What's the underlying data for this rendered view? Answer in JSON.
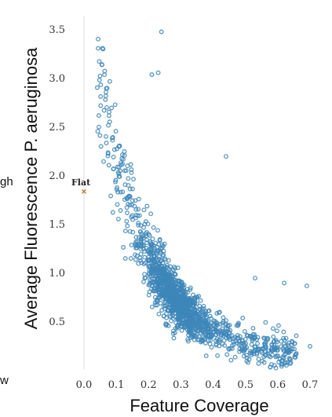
{
  "chart_data": {
    "type": "scatter",
    "xlabel": "Feature Coverage",
    "ylabel": "Average Fluorescence P. aeruginosa",
    "xlim": [
      0.0,
      0.72
    ],
    "ylim": [
      0.0,
      3.6
    ],
    "x_ticks": [
      "0.0",
      "0.1",
      "0.2",
      "0.3",
      "0.4",
      "0.5",
      "0.6",
      "0.7"
    ],
    "y_ticks": [
      "0.5",
      "1.0",
      "1.5",
      "2.0",
      "2.5",
      "3.0",
      "3.5"
    ],
    "x_tick_values": [
      0.0,
      0.1,
      0.2,
      0.3,
      0.4,
      0.5,
      0.6,
      0.7
    ],
    "y_tick_values": [
      0.5,
      1.0,
      1.5,
      2.0,
      2.5,
      3.0,
      3.5
    ],
    "grid": false,
    "y_axis_line": true,
    "cut_off_labels": {
      "left_upper": "gh",
      "left_lower": "w"
    },
    "marker_color": "#3d86b8",
    "annotation": {
      "label": "Flat",
      "x": 0.0,
      "y": 1.84,
      "color": "#c27a3a",
      "marker": "x"
    },
    "trend": {
      "a": 2.75,
      "b": 6.4,
      "x_min": 0.04,
      "x_max": 0.72
    },
    "sample_points": [
      {
        "x": 0.23,
        "y": 3.06
      },
      {
        "x": 0.24,
        "y": 3.48
      },
      {
        "x": 0.21,
        "y": 3.04
      },
      {
        "x": 0.08,
        "y": 2.97
      },
      {
        "x": 0.44,
        "y": 2.2
      },
      {
        "x": 0.62,
        "y": 0.9
      },
      {
        "x": 0.69,
        "y": 0.87
      },
      {
        "x": 0.7,
        "y": 0.25
      },
      {
        "x": 0.53,
        "y": 0.95
      }
    ]
  }
}
